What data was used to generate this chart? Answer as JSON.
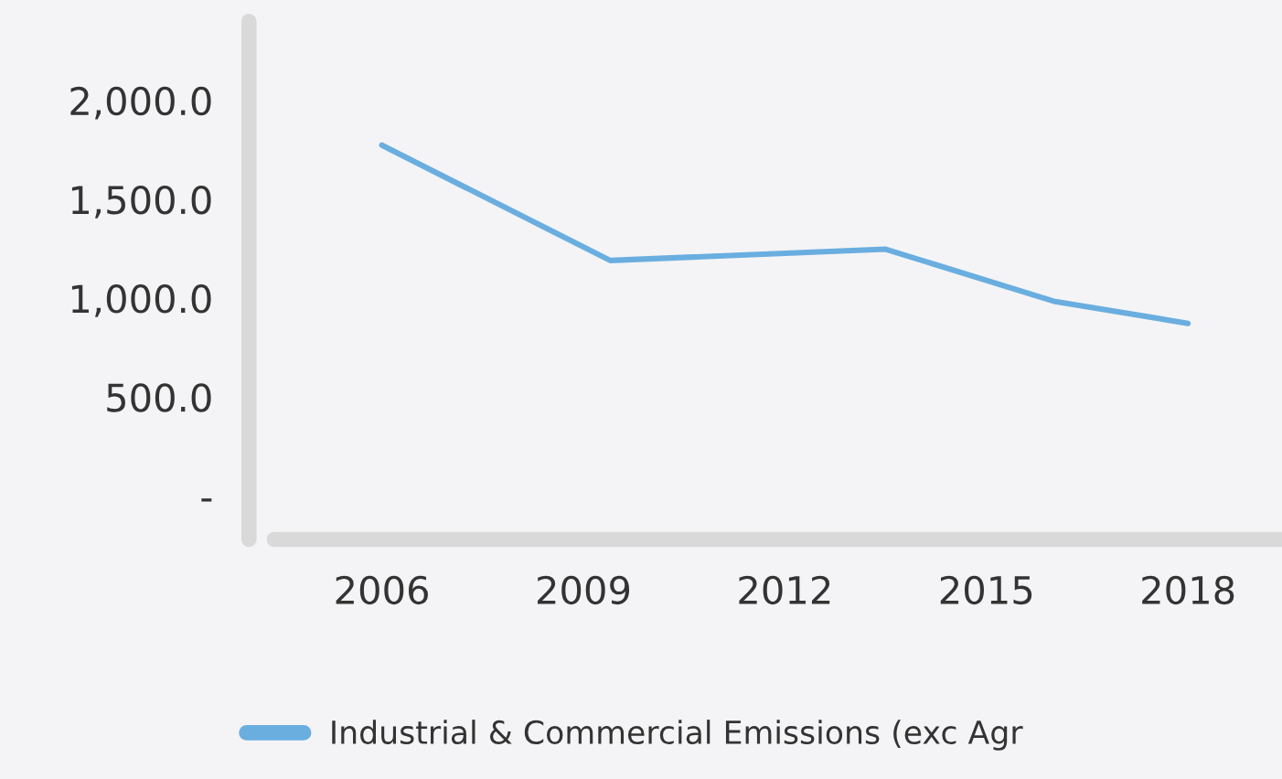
{
  "chart_data": {
    "type": "line",
    "x": [
      2006,
      2009.4,
      2013.5,
      2016,
      2018
    ],
    "series": [
      {
        "name": "Industrial & Commercial Emissions (exc Agr",
        "color": "#6aaee0",
        "values": [
          1774,
          1191,
          1248,
          985,
          873
        ]
      }
    ],
    "xlim": [
      2004.4,
      2019.4
    ],
    "xticks": [
      2006,
      2009,
      2012,
      2015,
      2018
    ],
    "ylim": [
      -220,
      2400
    ],
    "yticks": [
      {
        "value": 0,
        "label": "-"
      },
      {
        "value": 500,
        "label": "500.0"
      },
      {
        "value": 1000,
        "label": "1,000.0"
      },
      {
        "value": 1500,
        "label": "1,500.0"
      },
      {
        "value": 2000,
        "label": "2,000.0"
      }
    ],
    "grid": false,
    "legend": "bottom",
    "marker": "none",
    "line_style": "solid"
  }
}
